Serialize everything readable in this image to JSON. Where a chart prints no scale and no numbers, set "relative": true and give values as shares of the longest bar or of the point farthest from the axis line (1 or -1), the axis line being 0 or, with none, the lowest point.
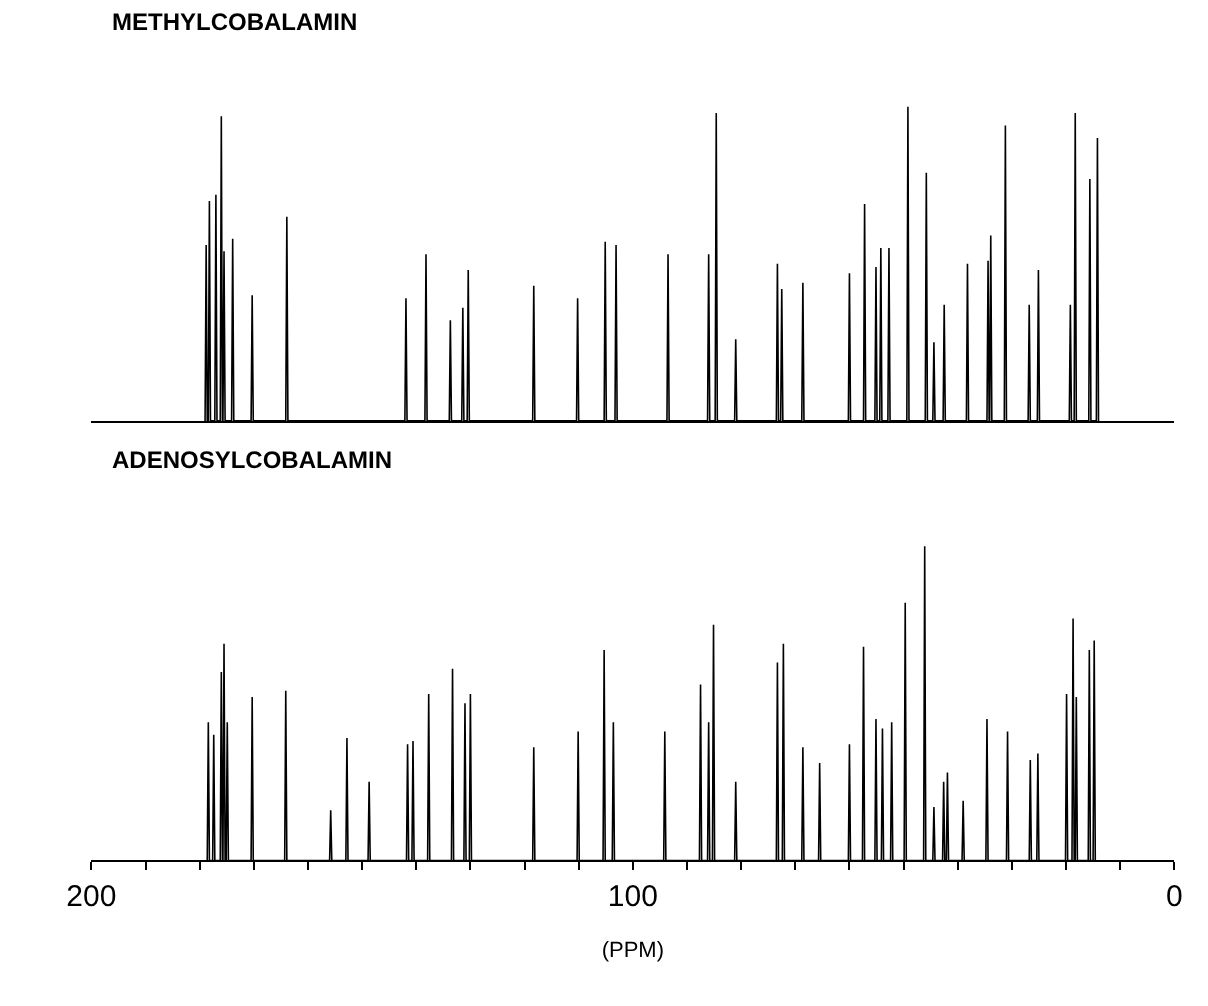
{
  "chart_data": [
    {
      "type": "line",
      "title": "METHYLCOBALAMIN",
      "relative": true,
      "color": "#000000",
      "marker": "none",
      "line_style": "solid",
      "tick_labels": false,
      "xlim": [
        200,
        0
      ],
      "x": [
        179.0,
        178.8,
        178.6,
        178.4,
        178.2,
        178.0,
        177.2,
        177.0,
        176.8,
        176.2,
        176.0,
        175.8,
        175.7,
        175.5,
        175.3,
        174.1,
        173.9,
        173.7,
        170.5,
        170.3,
        170.1,
        164.1,
        163.9,
        163.7,
        142.1,
        141.9,
        141.7,
        138.4,
        138.2,
        138.0,
        133.9,
        133.7,
        133.5,
        131.6,
        131.4,
        131.2,
        130.6,
        130.4,
        130.2,
        118.5,
        118.3,
        118.1,
        110.4,
        110.2,
        110.0,
        105.3,
        105.1,
        104.9,
        103.3,
        103.1,
        102.9,
        93.7,
        93.5,
        93.3,
        86.2,
        86.0,
        85.8,
        84.8,
        84.6,
        84.4,
        81.2,
        81.0,
        80.8,
        73.5,
        73.3,
        73.1,
        72.7,
        72.5,
        72.3,
        68.8,
        68.6,
        68.4,
        60.2,
        60.0,
        59.8,
        57.4,
        57.2,
        57.0,
        55.3,
        55.1,
        54.9,
        54.4,
        54.2,
        54.0,
        52.9,
        52.7,
        52.5,
        49.4,
        49.2,
        49.0,
        46.0,
        45.8,
        45.6,
        44.6,
        44.4,
        44.2,
        42.7,
        42.5,
        42.3,
        38.4,
        38.2,
        38.0,
        34.6,
        34.4,
        34.2,
        34.1,
        33.9,
        33.7,
        31.4,
        31.2,
        31.0,
        27.0,
        26.8,
        26.6,
        25.3,
        25.1,
        24.9,
        19.4,
        19.2,
        19.0,
        18.5,
        18.3,
        18.1,
        15.8,
        15.6,
        15.4,
        14.4,
        14.2,
        14.0
      ],
      "values": [
        0,
        0.56,
        0,
        0,
        0.7,
        0,
        0,
        0.72,
        0,
        0,
        0.97,
        0,
        0,
        0.54,
        0,
        0,
        0.58,
        0,
        0,
        0.4,
        0,
        0,
        0.65,
        0,
        0,
        0.39,
        0,
        0,
        0.53,
        0,
        0,
        0.32,
        0,
        0,
        0.36,
        0,
        0,
        0.48,
        0,
        0,
        0.43,
        0,
        0,
        0.39,
        0,
        0,
        0.57,
        0,
        0,
        0.56,
        0,
        0,
        0.53,
        0,
        0,
        0.53,
        0,
        0,
        0.98,
        0,
        0,
        0.26,
        0,
        0,
        0.5,
        0,
        0,
        0.42,
        0,
        0,
        0.44,
        0,
        0,
        0.47,
        0,
        0,
        0.69,
        0,
        0,
        0.49,
        0,
        0,
        0.55,
        0,
        0,
        0.55,
        0,
        0,
        1.0,
        0,
        0,
        0.79,
        0,
        0,
        0.25,
        0,
        0,
        0.37,
        0,
        0,
        0.5,
        0,
        0,
        0.51,
        0,
        0,
        0.59,
        0,
        0,
        0.94,
        0,
        0,
        0.37,
        0,
        0,
        0.48,
        0,
        0,
        0.37,
        0,
        0,
        0.98,
        0,
        0,
        0.77,
        0,
        0,
        0.9,
        0
      ]
    },
    {
      "type": "line",
      "title": "ADENOSYLCOBALAMIN",
      "relative": true,
      "color": "#000000",
      "marker": "none",
      "line_style": "solid",
      "tick_labels": "x",
      "xlabel": "(PPM)",
      "xlim": [
        200,
        0
      ],
      "xticks": [
        200,
        {
          "value": 190,
          "label": null
        },
        {
          "value": 180,
          "label": null
        },
        {
          "value": 170,
          "label": null
        },
        {
          "value": 160,
          "label": null
        },
        {
          "value": 150,
          "label": null
        },
        {
          "value": 140,
          "label": null
        },
        {
          "value": 130,
          "label": null
        },
        {
          "value": 120,
          "label": null
        },
        {
          "value": 110,
          "label": null
        },
        100,
        {
          "value": 90,
          "label": null
        },
        {
          "value": 80,
          "label": null
        },
        {
          "value": 70,
          "label": null
        },
        {
          "value": 60,
          "label": null
        },
        {
          "value": 50,
          "label": null
        },
        {
          "value": 40,
          "label": null
        },
        {
          "value": 30,
          "label": null
        },
        {
          "value": 20,
          "label": null
        },
        {
          "value": 10,
          "label": null
        },
        0
      ],
      "x": [
        178.6,
        178.4,
        178.2,
        177.6,
        177.4,
        177.2,
        176.2,
        176.0,
        175.8,
        175.7,
        175.5,
        175.3,
        175.1,
        174.9,
        174.7,
        170.5,
        170.3,
        170.1,
        164.3,
        164.1,
        163.9,
        156.0,
        155.8,
        155.6,
        153.0,
        152.8,
        152.6,
        148.9,
        148.7,
        148.5,
        141.8,
        141.6,
        141.4,
        140.8,
        140.6,
        140.4,
        137.9,
        137.7,
        137.5,
        133.5,
        133.3,
        133.1,
        131.2,
        131.0,
        130.8,
        130.2,
        130.0,
        129.8,
        118.5,
        118.3,
        118.1,
        110.3,
        110.1,
        109.9,
        105.5,
        105.3,
        105.1,
        103.8,
        103.6,
        103.4,
        94.3,
        94.1,
        93.9,
        87.7,
        87.5,
        87.3,
        86.2,
        86.0,
        85.8,
        85.3,
        85.1,
        84.9,
        81.2,
        81.0,
        80.8,
        73.5,
        73.3,
        73.1,
        72.4,
        72.2,
        72.0,
        68.8,
        68.6,
        68.4,
        65.7,
        65.5,
        65.3,
        60.2,
        60.0,
        59.8,
        57.6,
        57.4,
        57.2,
        55.3,
        55.1,
        54.9,
        54.1,
        53.9,
        53.7,
        52.4,
        52.2,
        52.0,
        49.9,
        49.7,
        49.5,
        46.3,
        46.1,
        45.9,
        44.6,
        44.4,
        44.2,
        42.8,
        42.6,
        42.4,
        42.1,
        41.9,
        41.7,
        39.2,
        39.0,
        38.8,
        34.8,
        34.6,
        34.4,
        31.0,
        30.8,
        30.6,
        26.8,
        26.6,
        26.4,
        25.4,
        25.2,
        25.0,
        20.1,
        19.9,
        19.7,
        18.9,
        18.7,
        18.5,
        18.3,
        18.1,
        17.9,
        15.9,
        15.7,
        15.5,
        15.0,
        14.8,
        14.6
      ],
      "values": [
        0,
        0.44,
        0,
        0,
        0.4,
        0,
        0,
        0.6,
        0,
        0,
        0.69,
        0,
        0,
        0.44,
        0,
        0,
        0.52,
        0,
        0,
        0.54,
        0,
        0,
        0.16,
        0,
        0,
        0.39,
        0,
        0,
        0.25,
        0,
        0,
        0.37,
        0,
        0,
        0.38,
        0,
        0,
        0.53,
        0,
        0,
        0.61,
        0,
        0,
        0.5,
        0,
        0,
        0.53,
        0,
        0,
        0.36,
        0,
        0,
        0.41,
        0,
        0,
        0.67,
        0,
        0,
        0.44,
        0,
        0,
        0.41,
        0,
        0,
        0.56,
        0,
        0,
        0.44,
        0,
        0,
        0.75,
        0,
        0,
        0.25,
        0,
        0,
        0.63,
        0,
        0,
        0.69,
        0,
        0,
        0.36,
        0,
        0,
        0.31,
        0,
        0,
        0.37,
        0,
        0,
        0.68,
        0,
        0,
        0.45,
        0,
        0,
        0.42,
        0,
        0,
        0.44,
        0,
        0,
        0.82,
        0,
        0,
        1.0,
        0,
        0,
        0.17,
        0,
        0,
        0.25,
        0,
        0,
        0.28,
        0,
        0,
        0.19,
        0,
        0,
        0.45,
        0,
        0,
        0.41,
        0,
        0,
        0.32,
        0,
        0,
        0.34,
        0,
        0,
        0.53,
        0,
        0,
        0.77,
        0,
        0,
        0.52,
        0,
        0,
        0.67,
        0,
        0,
        0.7,
        0
      ]
    }
  ]
}
